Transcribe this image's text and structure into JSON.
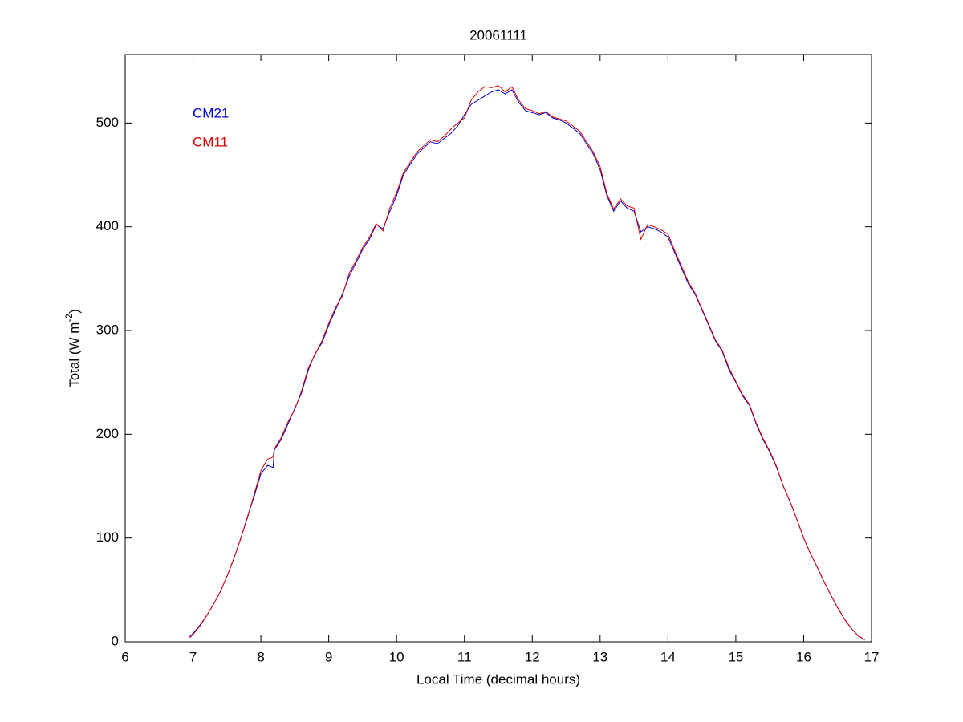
{
  "chart_data": {
    "type": "line",
    "title": "20061111",
    "xlabel": "Local Time (decimal hours)",
    "ylabel": {
      "text": "Total (W m",
      "sup": "-2",
      "close": ")"
    },
    "legend": "upper left",
    "x": [
      6.95,
      7.0,
      7.1,
      7.2,
      7.3,
      7.4,
      7.5,
      7.6,
      7.7,
      7.8,
      7.9,
      8.0,
      8.1,
      8.18,
      8.2,
      8.3,
      8.4,
      8.5,
      8.6,
      8.7,
      8.8,
      8.9,
      9.0,
      9.1,
      9.2,
      9.3,
      9.4,
      9.5,
      9.6,
      9.7,
      9.8,
      9.9,
      10.0,
      10.1,
      10.2,
      10.3,
      10.4,
      10.5,
      10.6,
      10.7,
      10.8,
      10.9,
      11.0,
      11.1,
      11.2,
      11.3,
      11.4,
      11.5,
      11.6,
      11.7,
      11.8,
      11.9,
      12.0,
      12.1,
      12.2,
      12.3,
      12.4,
      12.5,
      12.6,
      12.7,
      12.8,
      12.9,
      13.0,
      13.1,
      13.2,
      13.3,
      13.4,
      13.5,
      13.6,
      13.7,
      13.8,
      13.9,
      14.0,
      14.1,
      14.2,
      14.3,
      14.4,
      14.5,
      14.6,
      14.7,
      14.8,
      14.9,
      15.0,
      15.1,
      15.2,
      15.3,
      15.4,
      15.5,
      15.6,
      15.7,
      15.8,
      15.9,
      16.0,
      16.1,
      16.2,
      16.3,
      16.4,
      16.5,
      16.6,
      16.7,
      16.8,
      16.9
    ],
    "series": [
      {
        "name": "CM21",
        "color": "#0000cc",
        "values": [
          5,
          8,
          16,
          25,
          36,
          48,
          63,
          80,
          99,
          120,
          140,
          162,
          170,
          168,
          185,
          195,
          210,
          225,
          240,
          262,
          278,
          288,
          305,
          320,
          335,
          352,
          365,
          378,
          388,
          402,
          398,
          415,
          430,
          450,
          460,
          470,
          476,
          482,
          480,
          485,
          490,
          497,
          508,
          518,
          522,
          526,
          530,
          532,
          528,
          532,
          520,
          512,
          510,
          508,
          510,
          505,
          503,
          500,
          495,
          490,
          480,
          470,
          455,
          430,
          415,
          425,
          418,
          415,
          395,
          400,
          398,
          395,
          390,
          375,
          360,
          345,
          335,
          320,
          305,
          290,
          280,
          262,
          250,
          237,
          228,
          210,
          195,
          183,
          168,
          150,
          135,
          118,
          100,
          85,
          72,
          58,
          45,
          33,
          22,
          13,
          6,
          2
        ]
      },
      {
        "name": "CM11",
        "color": "#dd0000",
        "values": [
          4,
          7,
          15,
          25,
          36,
          48,
          63,
          80,
          99,
          119,
          142,
          165,
          176,
          178,
          186,
          197,
          212,
          224,
          242,
          264,
          277,
          290,
          307,
          322,
          333,
          355,
          367,
          380,
          390,
          403,
          396,
          418,
          433,
          452,
          462,
          472,
          478,
          484,
          482,
          487,
          494,
          500,
          505,
          522,
          530,
          535,
          534,
          536,
          530,
          535,
          522,
          514,
          512,
          509,
          511,
          506,
          504,
          502,
          497,
          492,
          482,
          472,
          458,
          432,
          417,
          427,
          420,
          418,
          388,
          402,
          400,
          397,
          393,
          377,
          362,
          347,
          336,
          321,
          306,
          291,
          281,
          264,
          251,
          238,
          229,
          211,
          196,
          184,
          169,
          150,
          135,
          118,
          100,
          85,
          72,
          58,
          45,
          33,
          22,
          13,
          6,
          2
        ]
      }
    ],
    "xlim": [
      6,
      17
    ],
    "xticks": [
      6,
      7,
      8,
      9,
      10,
      11,
      12,
      13,
      14,
      15,
      16,
      17
    ],
    "ylim": [
      0,
      566
    ],
    "yticks": [
      0,
      100,
      200,
      300,
      400,
      500
    ]
  }
}
